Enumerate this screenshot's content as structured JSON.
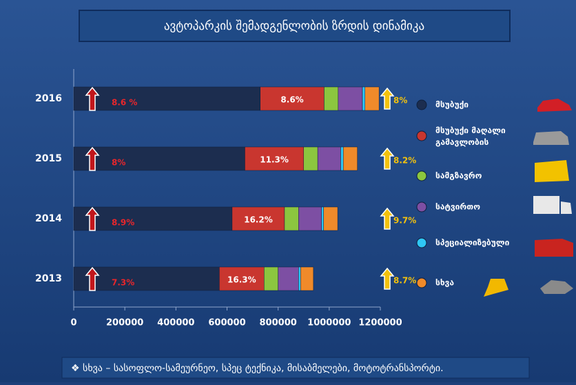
{
  "chart_data": {
    "type": "stacked-hbar",
    "title": "ავტოპარკის შემადგენლობის ზრდის დინამიკა",
    "categories": [
      "2016",
      "2015",
      "2014",
      "2013"
    ],
    "series": [
      {
        "name": "მსუბუქი",
        "color": "#1c2d4f",
        "values": [
          730000,
          670000,
          620000,
          570000
        ]
      },
      {
        "name": "მსუბუქი მაღალი გამავლობის",
        "color": "#c9362f",
        "values": [
          250000,
          230000,
          205000,
          175000
        ]
      },
      {
        "name": "სამგზავრო",
        "color": "#8cc63f",
        "values": [
          55000,
          55000,
          55000,
          55000
        ]
      },
      {
        "name": "სატვირთო",
        "color": "#7d4fa3",
        "values": [
          95000,
          90000,
          90000,
          80000
        ]
      },
      {
        "name": "სპეციალიზებული",
        "color": "#2fc7f5",
        "values": [
          10000,
          10000,
          8000,
          8000
        ]
      },
      {
        "name": "სხვა",
        "color": "#f08a2a",
        "values": [
          55000,
          55000,
          55000,
          50000
        ]
      }
    ],
    "base_growth_labels": [
      "8.6 %",
      "8%",
      "8.9%",
      "7.3%"
    ],
    "offroad_share_labels": [
      "8.6%",
      "11.3%",
      "16.2%",
      "16.3%"
    ],
    "total_growth_labels": [
      "8%",
      "8.2%",
      "9.7%",
      "8.7%"
    ],
    "xlim": [
      0,
      1200000
    ],
    "xticks": [
      0,
      200000,
      400000,
      600000,
      800000,
      1000000,
      1200000
    ],
    "footnote": "❖ სხვა – სასოფლო-სამეურნეო, სპეც ტექნიკა, მისაბმელები, მოტოტრანსპორტი."
  }
}
